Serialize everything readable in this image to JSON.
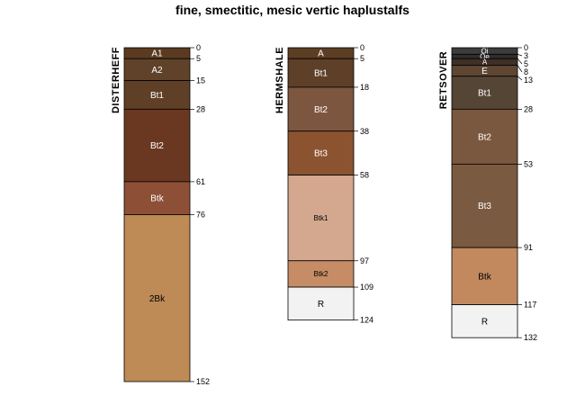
{
  "title": "fine, smectitic, mesic vertic haplustalfs",
  "profiles": [
    {
      "name": "DISTERHEFF",
      "bottom_depth": 152,
      "horizons": [
        {
          "label": "A1",
          "top": 0,
          "bottom": 5,
          "color": "#5a3b22",
          "label_color": "#ffffff"
        },
        {
          "label": "A2",
          "top": 5,
          "bottom": 15,
          "color": "#5f4229",
          "label_color": "#ffffff"
        },
        {
          "label": "Bt1",
          "top": 15,
          "bottom": 28,
          "color": "#5f3f26",
          "label_color": "#ffffff"
        },
        {
          "label": "Bt2",
          "top": 28,
          "bottom": 61,
          "color": "#6a3820",
          "label_color": "#ffffff"
        },
        {
          "label": "Btk",
          "top": 61,
          "bottom": 76,
          "color": "#8d5037",
          "label_color": "#ffffff"
        },
        {
          "label": "2Bk",
          "top": 76,
          "bottom": 152,
          "color": "#be8a55",
          "label_color": "#000000"
        }
      ],
      "depth_labels": [
        "0",
        "5",
        "15",
        "28",
        "61",
        "76",
        "152"
      ]
    },
    {
      "name": "HERMSHALE",
      "bottom_depth": 124,
      "horizons": [
        {
          "label": "A",
          "top": 0,
          "bottom": 5,
          "color": "#5c3e24",
          "label_color": "#ffffff"
        },
        {
          "label": "Bt1",
          "top": 5,
          "bottom": 18,
          "color": "#5e3f27",
          "label_color": "#ffffff"
        },
        {
          "label": "Bt2",
          "top": 18,
          "bottom": 38,
          "color": "#7c563f",
          "label_color": "#ffffff"
        },
        {
          "label": "Bt3",
          "top": 38,
          "bottom": 58,
          "color": "#8c5330",
          "label_color": "#ffffff"
        },
        {
          "label": "Btk1",
          "top": 58,
          "bottom": 97,
          "color": "#d3a88e",
          "label_color": "#000000"
        },
        {
          "label": "Btk2",
          "top": 97,
          "bottom": 109,
          "color": "#c58c65",
          "label_color": "#000000"
        },
        {
          "label": "R",
          "top": 109,
          "bottom": 124,
          "color": "#f2f2f2",
          "label_color": "#000000"
        }
      ],
      "depth_labels": [
        "0",
        "5",
        "18",
        "38",
        "58",
        "97",
        "109",
        "124"
      ]
    },
    {
      "name": "RETSOVER",
      "bottom_depth": 132,
      "horizons": [
        {
          "label": "Oi",
          "top": 0,
          "bottom": 3,
          "color": "#3c3c3c",
          "label_color": "#ffffff"
        },
        {
          "label": "Oe",
          "top": 3,
          "bottom": 5,
          "color": "#2e2e2e",
          "label_color": "#ffffff"
        },
        {
          "label": "A",
          "top": 5,
          "bottom": 8,
          "color": "#3e3026",
          "label_color": "#ffffff"
        },
        {
          "label": "E",
          "top": 8,
          "bottom": 13,
          "color": "#5e4632",
          "label_color": "#ffffff"
        },
        {
          "label": "Bt1",
          "top": 13,
          "bottom": 28,
          "color": "#554535",
          "label_color": "#ffffff"
        },
        {
          "label": "Bt2",
          "top": 28,
          "bottom": 53,
          "color": "#7a573f",
          "label_color": "#ffffff"
        },
        {
          "label": "Bt3",
          "top": 53,
          "bottom": 91,
          "color": "#7a5a41",
          "label_color": "#ffffff"
        },
        {
          "label": "Btk",
          "top": 91,
          "bottom": 117,
          "color": "#c2895f",
          "label_color": "#000000"
        },
        {
          "label": "R",
          "top": 117,
          "bottom": 132,
          "color": "#f2f2f2",
          "label_color": "#000000"
        }
      ],
      "depth_labels": [
        "0",
        "3",
        "5",
        "8",
        "13",
        "28",
        "53",
        "91",
        "117",
        "132"
      ]
    }
  ]
}
